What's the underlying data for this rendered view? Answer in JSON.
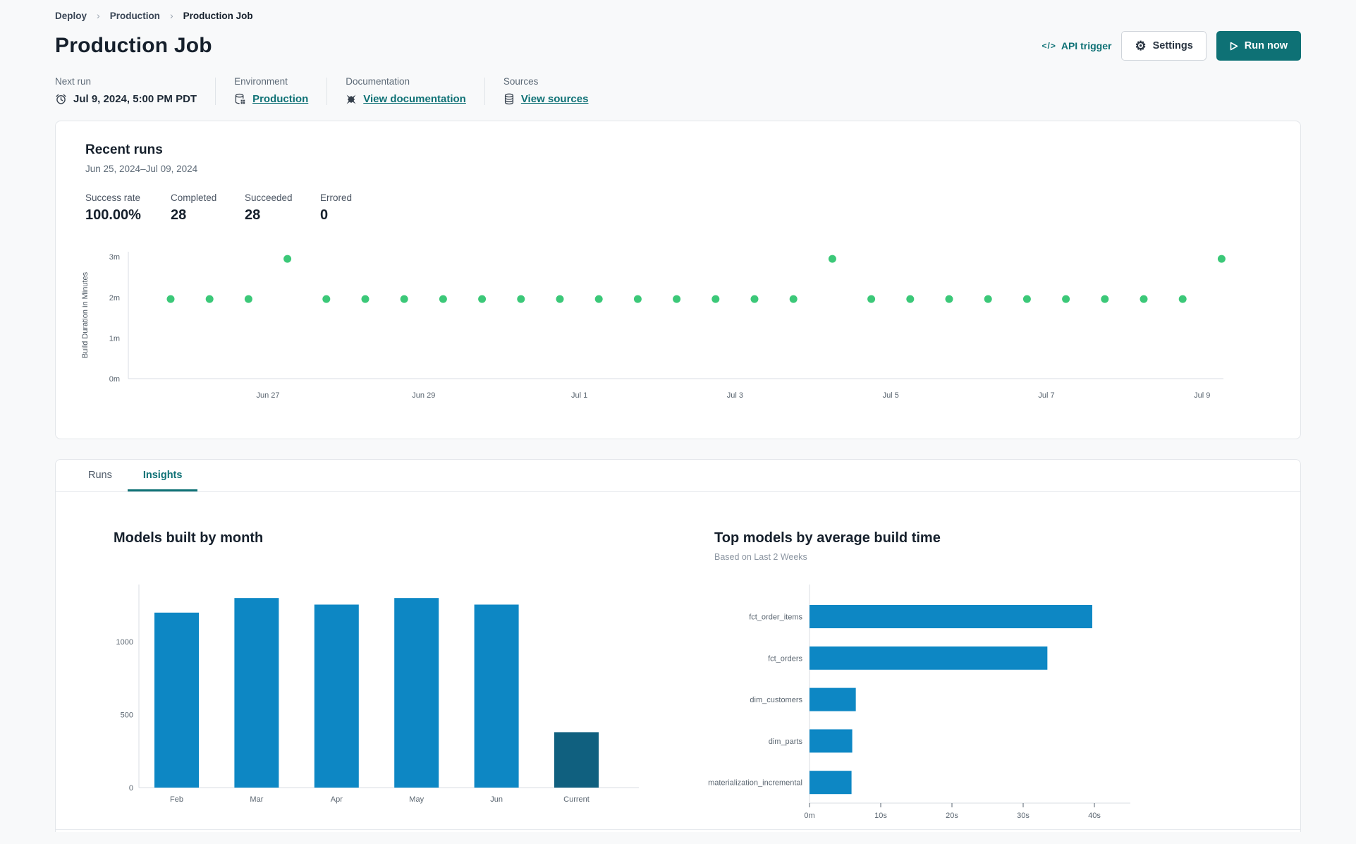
{
  "breadcrumb": {
    "separator": "›",
    "items": [
      {
        "label": "Deploy"
      },
      {
        "label": "Production"
      },
      {
        "label": "Production Job"
      }
    ]
  },
  "header": {
    "title": "Production Job"
  },
  "actions": {
    "api_trigger_label": "API trigger",
    "api_icon_glyph": "</>",
    "settings_label": "Settings",
    "run_now_label": "Run now"
  },
  "meta": {
    "items": [
      {
        "label": "Next run",
        "value": "Jul 9, 2024, 5:00 PM PDT",
        "icon": "clock-icon"
      },
      {
        "label": "Environment",
        "value": "Production",
        "icon": "environment-icon"
      },
      {
        "label": "Documentation",
        "value": "View documentation",
        "icon": "dbt-docs-icon"
      },
      {
        "label": "Sources",
        "value": "View sources",
        "icon": "database-icon"
      }
    ]
  },
  "recent_runs": {
    "title": "Recent runs",
    "date_range": "Jun 25, 2024–Jul 09, 2024",
    "stats": [
      {
        "label": "Success rate",
        "value": "100.00%"
      },
      {
        "label": "Completed",
        "value": "28"
      },
      {
        "label": "Succeeded",
        "value": "28"
      },
      {
        "label": "Errored",
        "value": "0"
      }
    ]
  },
  "tabs": [
    {
      "label": "Runs",
      "active": false
    },
    {
      "label": "Insights",
      "active": true
    }
  ],
  "colors": {
    "accent_teal": "#0e7175",
    "success_green": "#3bc878",
    "bar_blue": "#0d87c4",
    "bar_navy": "#10607f",
    "axis_gray": "#d9dde3"
  },
  "chart_data": [
    {
      "id": "build-duration-scatter",
      "type": "scatter",
      "title": "Recent runs",
      "ylabel": "Build Duration in Minutes",
      "ytick_labels": [
        "0m",
        "1m",
        "2m",
        "3m"
      ],
      "ylim": [
        0,
        3.2
      ],
      "xtick_labels": [
        "Jun 27",
        "Jun 29",
        "Jul 1",
        "Jul 3",
        "Jul 5",
        "Jul 7",
        "Jul 9"
      ],
      "xtick_positions": [
        2.5,
        6.5,
        10.5,
        14.5,
        18.5,
        22.5,
        26.5
      ],
      "point_color": "#3bc878",
      "values": [
        1.96,
        1.96,
        1.96,
        2.95,
        1.96,
        1.96,
        1.96,
        1.96,
        1.96,
        1.96,
        1.96,
        1.96,
        1.96,
        1.96,
        1.96,
        1.96,
        1.96,
        2.95,
        1.96,
        1.96,
        1.96,
        1.96,
        1.96,
        1.96,
        1.96,
        1.96,
        1.96,
        2.95
      ],
      "grid": false,
      "legend": false
    },
    {
      "id": "models-built-by-month",
      "type": "bar",
      "title": "Models built by month",
      "categories": [
        "Feb",
        "Mar",
        "Apr",
        "May",
        "Jun",
        "Current"
      ],
      "values": [
        1200,
        1300,
        1255,
        1300,
        1255,
        380
      ],
      "ytick_values": [
        0,
        500,
        1000
      ],
      "ylim": [
        0,
        1390
      ],
      "bar_color": "#0d87c4",
      "current_color": "#10607f",
      "grid": false,
      "legend": false
    },
    {
      "id": "top-models-by-average-build-time",
      "type": "bar",
      "orientation": "horizontal",
      "title": "Top models by average build time",
      "subtitle": "Based on Last 2 Weeks",
      "categories": [
        "fct_order_items",
        "fct_orders",
        "dim_customers",
        "dim_parts",
        "materialization_incremental"
      ],
      "values": [
        39.7,
        33.4,
        6.5,
        6.0,
        5.9
      ],
      "xtick_labels": [
        "0m",
        "10s",
        "20s",
        "30s",
        "40s"
      ],
      "xtick_values": [
        0,
        10,
        20,
        30,
        40
      ],
      "xlim": [
        0,
        44
      ],
      "unit": "seconds",
      "bar_color": "#0d87c4",
      "grid": false,
      "legend": false
    }
  ]
}
